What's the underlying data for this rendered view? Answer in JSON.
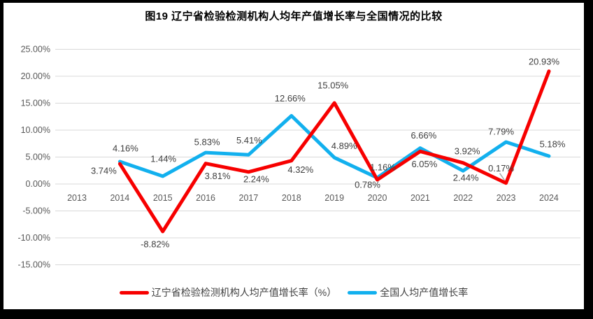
{
  "chart_data": {
    "type": "line",
    "title": "图19  辽宁省检验检测机构人均年产值增长率与全国情况的比较",
    "x_categories": [
      "2013",
      "2014",
      "2015",
      "2016",
      "2017",
      "2018",
      "2019",
      "2020",
      "2021",
      "2022",
      "2023",
      "2024"
    ],
    "y_tick_labels": [
      "25.00%",
      "20.00%",
      "15.00%",
      "10.00%",
      "5.00%",
      "0.00%",
      "-5.00%",
      "-10.00%",
      "-15.00%"
    ],
    "y_tick_values": [
      25,
      20,
      15,
      10,
      5,
      0,
      -5,
      -10,
      -15
    ],
    "ylim": [
      -15,
      25
    ],
    "grid": true,
    "legend_position": "bottom",
    "series": [
      {
        "name": "全国人均产值增长率",
        "color": "#12b0ee",
        "years": [
          "2014",
          "2015",
          "2016",
          "2017",
          "2018",
          "2019",
          "2020",
          "2021",
          "2022",
          "2023",
          "2024"
        ],
        "values": [
          4.16,
          1.44,
          5.83,
          5.41,
          12.66,
          4.89,
          1.16,
          6.66,
          2.44,
          7.79,
          5.18
        ],
        "labels": [
          "4.16%",
          "1.44%",
          "5.83%",
          "5.41%",
          "12.66%",
          "4.89%",
          "1.16%",
          "6.66%",
          "2.44%",
          "7.79%",
          "5.18%"
        ],
        "label_offsets": [
          [
            8,
            -19
          ],
          [
            1,
            -25
          ],
          [
            2,
            -15
          ],
          [
            1,
            -21
          ],
          [
            -2,
            -25
          ],
          [
            14,
            -17
          ],
          [
            8,
            -15
          ],
          [
            5,
            -18
          ],
          [
            4,
            10
          ],
          [
            -7,
            -15
          ],
          [
            5,
            -17
          ]
        ]
      },
      {
        "name": "辽宁省检验检测机构人均产值增长率（%）",
        "color": "#f70000",
        "years": [
          "2014",
          "2015",
          "2016",
          "2017",
          "2018",
          "2019",
          "2020",
          "2021",
          "2022",
          "2023",
          "2024"
        ],
        "values": [
          3.74,
          -8.82,
          3.81,
          2.24,
          4.32,
          15.05,
          0.78,
          6.05,
          3.92,
          0.17,
          20.93
        ],
        "labels": [
          "3.74%",
          "-8.82%",
          "3.81%",
          "2.24%",
          "4.32%",
          "15.05%",
          "0.78%",
          "6.05%",
          "3.92%",
          "0.17%",
          "20.93%"
        ],
        "label_offsets": [
          [
            -23,
            10
          ],
          [
            -11,
            18
          ],
          [
            17,
            18
          ],
          [
            11,
            10
          ],
          [
            13,
            13
          ],
          [
            -2,
            -25
          ],
          [
            -14,
            7
          ],
          [
            6,
            18
          ],
          [
            6,
            -17
          ],
          [
            -7,
            -21
          ],
          [
            -7,
            -14
          ]
        ],
        "leader_years": [
          "2023"
        ]
      }
    ],
    "colors": {
      "grid": "#d9d9d9",
      "axis_text": "#595959",
      "data_label_text": "#404040",
      "leader": "#a6a6a6",
      "frame": "#000000",
      "background": "#ffffff"
    }
  },
  "legend": {
    "order_note": "red item shown first, blue second"
  }
}
